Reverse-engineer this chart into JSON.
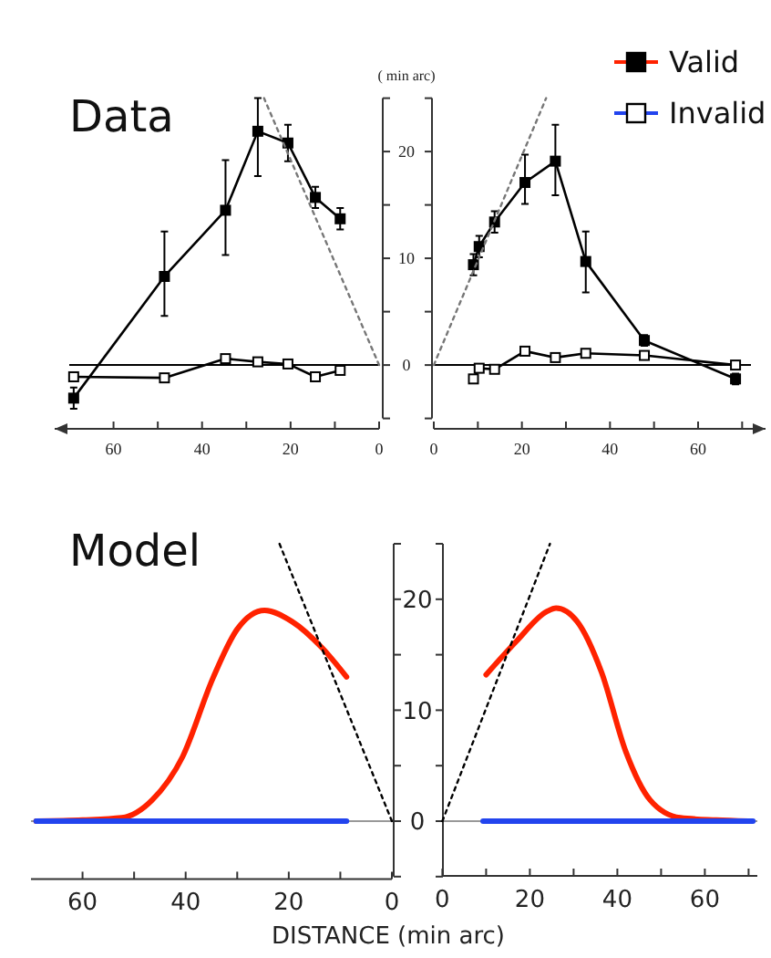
{
  "chart_data": [
    {
      "type": "line",
      "title": "Data",
      "xlim": [
        70,
        0
      ],
      "ylim": [
        -5,
        25
      ],
      "xticks": [
        60,
        {
          "value": 50,
          "label": null
        },
        40,
        {
          "value": 30,
          "label": null
        },
        20,
        {
          "value": 10,
          "label": null
        },
        0
      ],
      "yticks": [
        {
          "value": -5,
          "label": null
        },
        0,
        {
          "value": 5,
          "label": null
        },
        10,
        {
          "value": 15,
          "label": null
        },
        20,
        {
          "value": 25,
          "label": null
        }
      ],
      "tick_labels": "x",
      "marker": "square",
      "grid": false,
      "series": [
        {
          "color": "#000000",
          "x": [
            69,
            48.5,
            34.7,
            27.4,
            20.6,
            14.4,
            8.8
          ],
          "values": [
            -3.1,
            8.3,
            14.5,
            21.9,
            20.8,
            15.7,
            13.7
          ],
          "errors": [
            1,
            [
              4.6,
              12.5
            ],
            [
              10.3,
              19.2
            ],
            [
              17.7,
              25
            ],
            [
              19.1,
              22.5
            ],
            1,
            1
          ]
        },
        {
          "color": "#000000",
          "x": [
            69,
            48.5,
            34.7,
            27.4,
            20.6,
            14.4,
            8.8
          ],
          "values": [
            -1.1,
            -1.2,
            0.6,
            0.3,
            0.1,
            -1.1,
            -0.5
          ]
        },
        {
          "type": "line",
          "color": "#777777",
          "line_style": "dotted",
          "marker": "none",
          "x": [
            0,
            26
          ],
          "values": [
            0,
            25
          ]
        }
      ],
      "ref_lines": [
        {
          "axis": "y",
          "value": 0,
          "color": "#000000"
        }
      ]
    },
    {
      "type": "line",
      "ylabel": "( min arc)",
      "xlim": [
        0,
        72
      ],
      "ylim": [
        -5,
        25
      ],
      "xticks": [
        0,
        {
          "value": 10,
          "label": null
        },
        20,
        {
          "value": 30,
          "label": null
        },
        40,
        {
          "value": 50,
          "label": null
        },
        60,
        {
          "value": 70,
          "label": null
        }
      ],
      "yticks": [
        {
          "value": -5,
          "label": null
        },
        0,
        {
          "value": 5,
          "label": null
        },
        10,
        {
          "value": 15,
          "label": null
        },
        20,
        {
          "value": 25,
          "label": null
        }
      ],
      "marker": "square",
      "grid": false,
      "series": [
        {
          "color": "#000000",
          "x": [
            9,
            10.3,
            13.8,
            20.7,
            27.6,
            34.5,
            47.8,
            68.5
          ],
          "values": [
            9.4,
            11.1,
            13.4,
            17.1,
            19.1,
            9.7,
            2.3,
            -1.3
          ],
          "errors": [
            1,
            1,
            1,
            [
              15.1,
              19.7
            ],
            [
              15.9,
              22.5
            ],
            [
              6.8,
              12.5
            ],
            0.5,
            0.5
          ]
        },
        {
          "color": "#000000",
          "x": [
            9,
            10.3,
            13.8,
            20.7,
            27.6,
            34.5,
            47.8,
            68.5
          ],
          "values": [
            -1.3,
            -0.3,
            -0.4,
            1.3,
            0.7,
            1.1,
            0.9,
            0
          ]
        },
        {
          "type": "line",
          "color": "#777777",
          "line_style": "dotted",
          "marker": "none",
          "x": [
            0,
            25.5
          ],
          "values": [
            0,
            25
          ]
        }
      ],
      "ref_lines": [
        {
          "axis": "y",
          "value": 0,
          "color": "#000000"
        }
      ]
    },
    {
      "type": "line",
      "title": "Model",
      "xlim": [
        70,
        0
      ],
      "ylim": [
        -5,
        25
      ],
      "xticks": [
        60,
        {
          "value": 50,
          "label": null
        },
        40,
        {
          "value": 30,
          "label": null
        },
        20,
        {
          "value": 10,
          "label": null
        },
        0
      ],
      "yticks": [
        {
          "value": -5,
          "label": null
        },
        0,
        {
          "value": 5,
          "label": null
        },
        10,
        {
          "value": 15,
          "label": null
        },
        20,
        {
          "value": 25,
          "label": null
        }
      ],
      "tick_labels": "x",
      "grid": false,
      "series": [
        {
          "color": "#ff2200",
          "x": [
            69,
            60,
            52.4,
            46.5,
            40.6,
            34.7,
            30,
            24.7,
            19.4,
            13.5,
            8.8
          ],
          "values": [
            0,
            0.1,
            0.3,
            1.9,
            5.8,
            12.9,
            17.3,
            19,
            18,
            15.6,
            13
          ]
        },
        {
          "color": "#2244ee",
          "x": [
            69,
            8.8
          ],
          "values": [
            0,
            0
          ]
        },
        {
          "color": "#000000",
          "line_style": "dotted",
          "x": [
            0,
            21.8
          ],
          "values": [
            0,
            25
          ]
        }
      ],
      "ref_lines": [
        {
          "axis": "y",
          "value": 0,
          "color": "#999999"
        }
      ]
    },
    {
      "type": "line",
      "xlabel": "DISTANCE (min arc)",
      "xlim": [
        0,
        72
      ],
      "ylim": [
        -5,
        25
      ],
      "xticks": [
        0,
        {
          "value": 10,
          "label": null
        },
        20,
        {
          "value": 30,
          "label": null
        },
        40,
        {
          "value": 50,
          "label": null
        },
        60,
        {
          "value": 70,
          "label": null
        }
      ],
      "yticks": [
        {
          "value": -5,
          "label": null
        },
        0,
        {
          "value": 5,
          "label": null
        },
        10,
        {
          "value": 15,
          "label": null
        },
        20,
        {
          "value": 25,
          "label": null
        }
      ],
      "legend": "top right",
      "grid": false,
      "series": [
        {
          "name": "Valid",
          "color": "#ff2200",
          "x": [
            10,
            16.9,
            23.9,
            26,
            30.8,
            36.4,
            41.9,
            47.5,
            54.4,
            62.6,
            70
          ],
          "values": [
            13.2,
            16.2,
            18.9,
            19.2,
            18,
            13.4,
            6.3,
            1.9,
            0.3,
            0.1,
            0
          ]
        },
        {
          "name": "Invalid",
          "color": "#2244ee",
          "x": [
            9.3,
            71
          ],
          "values": [
            0,
            0
          ]
        },
        {
          "color": "#000000",
          "line_style": "dotted",
          "x": [
            0,
            24.6
          ],
          "values": [
            0,
            25
          ]
        }
      ],
      "ref_lines": [
        {
          "axis": "y",
          "value": 0,
          "color": "#999999"
        }
      ]
    }
  ]
}
